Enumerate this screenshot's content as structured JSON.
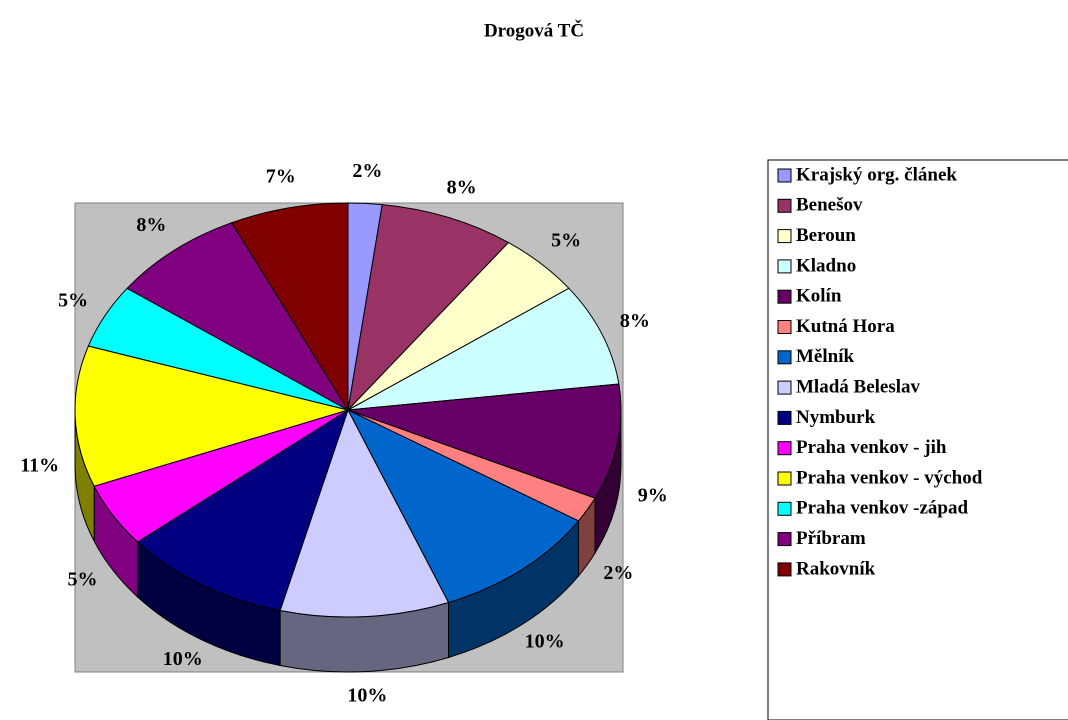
{
  "chart_data": {
    "type": "pie",
    "title": "Drogová TČ",
    "categories": [
      "Krajský org. článek",
      "Benešov",
      "Beroun",
      "Kladno",
      "Kolín",
      "Kutná Hora",
      "Mělník",
      "Mladá Beleslav",
      "Nymburk",
      "Praha venkov - jih",
      "Praha venkov - východ",
      "Praha venkov -západ",
      "Příbram",
      "Rakovník"
    ],
    "values": [
      2,
      8,
      5,
      8,
      9,
      2,
      10,
      10,
      10,
      5,
      11,
      5,
      8,
      7
    ],
    "value_labels": [
      "2%",
      "8%",
      "5%",
      "8%",
      "9%",
      "2%",
      "10%",
      "10%",
      "10%",
      "5%",
      "11%",
      "5%",
      "8%",
      "7%"
    ],
    "colors": [
      "#9999ff",
      "#993366",
      "#ffffcc",
      "#ccffff",
      "#660066",
      "#ff8080",
      "#0066cc",
      "#ccccff",
      "#000080",
      "#ff00ff",
      "#ffff00",
      "#00ffff",
      "#800080",
      "#800000"
    ],
    "legend": "right"
  }
}
